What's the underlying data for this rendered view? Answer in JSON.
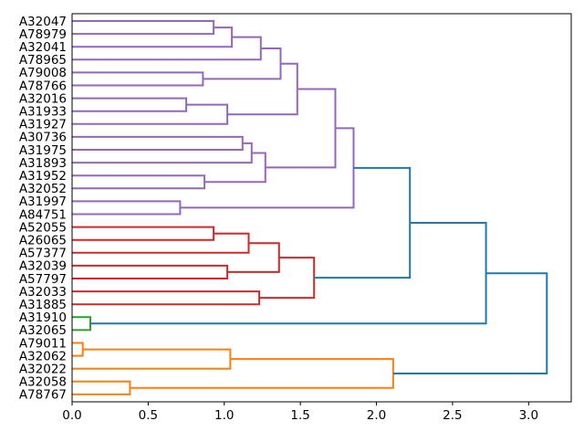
{
  "figure": {
    "background": "#ffffff",
    "border_color": "#000000"
  },
  "chart_data": {
    "type": "dendrogram",
    "orientation": "right",
    "title": "",
    "xlabel": "",
    "ylabel": "",
    "grid": false,
    "legend": null,
    "xlim": [
      0,
      3.28
    ],
    "x_ticks": [
      {
        "value": 0.0,
        "label": "0.0"
      },
      {
        "value": 0.5,
        "label": "0.5"
      },
      {
        "value": 1.0,
        "label": "1.0"
      },
      {
        "value": 1.5,
        "label": "1.5"
      },
      {
        "value": 2.0,
        "label": "2.0"
      },
      {
        "value": 2.5,
        "label": "2.5"
      },
      {
        "value": 3.0,
        "label": "3.0"
      }
    ],
    "leaves": [
      "A32047",
      "A78979",
      "A32041",
      "A78965",
      "A79008",
      "A78766",
      "A32016",
      "A31933",
      "A31927",
      "A30736",
      "A31975",
      "A31893",
      "A31952",
      "A32052",
      "A31997",
      "A84751",
      "A52055",
      "A26065",
      "A57377",
      "A32039",
      "A57797",
      "A32033",
      "A31885",
      "A31910",
      "A32065",
      "A79011",
      "A32062",
      "A32022",
      "A32058",
      "A78767"
    ],
    "palette": {
      "purple": "#9467bd",
      "red": "#d62728",
      "green": "#2ca02c",
      "orange": "#ff7f0e",
      "blue": "#1f77b4"
    },
    "links": [
      {
        "id": "M0",
        "a": "L0",
        "b": "L1",
        "h": 0.93,
        "color": "purple"
      },
      {
        "id": "M1",
        "a": "M0",
        "b": "L2",
        "h": 1.05,
        "color": "purple"
      },
      {
        "id": "M2",
        "a": "M1",
        "b": "L3",
        "h": 1.24,
        "color": "purple"
      },
      {
        "id": "M3",
        "a": "L4",
        "b": "L5",
        "h": 0.86,
        "color": "purple"
      },
      {
        "id": "M4",
        "a": "M2",
        "b": "M3",
        "h": 1.37,
        "color": "purple"
      },
      {
        "id": "M5",
        "a": "L6",
        "b": "L7",
        "h": 0.75,
        "color": "purple"
      },
      {
        "id": "M6",
        "a": "M5",
        "b": "L8",
        "h": 1.02,
        "color": "purple"
      },
      {
        "id": "M7",
        "a": "M4",
        "b": "M6",
        "h": 1.48,
        "color": "purple"
      },
      {
        "id": "M8",
        "a": "L9",
        "b": "L10",
        "h": 1.12,
        "color": "purple"
      },
      {
        "id": "M9",
        "a": "M8",
        "b": "L11",
        "h": 1.18,
        "color": "purple"
      },
      {
        "id": "M10",
        "a": "L12",
        "b": "L13",
        "h": 0.87,
        "color": "purple"
      },
      {
        "id": "M11",
        "a": "M9",
        "b": "M10",
        "h": 1.27,
        "color": "purple"
      },
      {
        "id": "M12",
        "a": "M7",
        "b": "M11",
        "h": 1.73,
        "color": "purple"
      },
      {
        "id": "M13",
        "a": "L14",
        "b": "L15",
        "h": 0.71,
        "color": "purple"
      },
      {
        "id": "M14",
        "a": "M12",
        "b": "M13",
        "h": 1.85,
        "color": "purple"
      },
      {
        "id": "M15",
        "a": "L16",
        "b": "L17",
        "h": 0.93,
        "color": "red"
      },
      {
        "id": "M16",
        "a": "M15",
        "b": "L18",
        "h": 1.16,
        "color": "red"
      },
      {
        "id": "M17",
        "a": "L19",
        "b": "L20",
        "h": 1.02,
        "color": "red"
      },
      {
        "id": "M18",
        "a": "M16",
        "b": "M17",
        "h": 1.36,
        "color": "red"
      },
      {
        "id": "M19",
        "a": "L21",
        "b": "L22",
        "h": 1.23,
        "color": "red"
      },
      {
        "id": "M20",
        "a": "M18",
        "b": "M19",
        "h": 1.59,
        "color": "red"
      },
      {
        "id": "M21",
        "a": "L23",
        "b": "L24",
        "h": 0.12,
        "color": "green"
      },
      {
        "id": "M22",
        "a": "L25",
        "b": "L26",
        "h": 0.07,
        "color": "orange"
      },
      {
        "id": "M23",
        "a": "M22",
        "b": "L27",
        "h": 1.04,
        "color": "orange"
      },
      {
        "id": "M24",
        "a": "L28",
        "b": "L29",
        "h": 0.38,
        "color": "orange"
      },
      {
        "id": "M25",
        "a": "M23",
        "b": "M24",
        "h": 2.11,
        "color": "orange"
      },
      {
        "id": "M26",
        "a": "M14",
        "b": "M20",
        "h": 2.22,
        "color": "blue"
      },
      {
        "id": "M27",
        "a": "M26",
        "b": "M21",
        "h": 2.72,
        "color": "blue"
      },
      {
        "id": "M28",
        "a": "M27",
        "b": "M25",
        "h": 3.12,
        "color": "blue"
      }
    ]
  }
}
